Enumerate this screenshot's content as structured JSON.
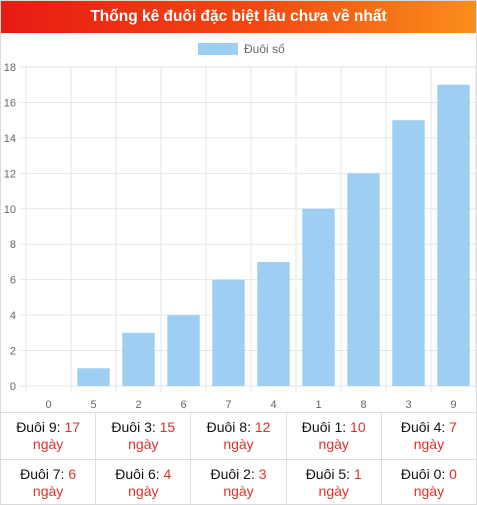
{
  "title": "Thống kê đuôi đặc biệt lâu chưa về nhất",
  "colors": {
    "bar": "#9ecff3",
    "grid": "#e6e6e6",
    "axis_text": "#666666",
    "accent": "#e0302a"
  },
  "chart_data": {
    "type": "bar",
    "categories": [
      "0",
      "5",
      "2",
      "6",
      "7",
      "4",
      "1",
      "8",
      "3",
      "9"
    ],
    "series": [
      {
        "name": "Đuôi số",
        "values": [
          0,
          1,
          3,
          4,
          6,
          7,
          10,
          12,
          15,
          17
        ]
      }
    ],
    "ylim": [
      0,
      18
    ],
    "yticks": [
      0,
      2,
      4,
      6,
      8,
      10,
      12,
      14,
      16,
      18
    ],
    "legend": "top-center",
    "grid": true
  },
  "stats": [
    [
      {
        "label": "Đuôi 9:",
        "value": "17",
        "unit": "ngày"
      },
      {
        "label": "Đuôi 3:",
        "value": "15",
        "unit": "ngày"
      },
      {
        "label": "Đuôi 8:",
        "value": "12",
        "unit": "ngày"
      },
      {
        "label": "Đuôi 1:",
        "value": "10",
        "unit": "ngày"
      },
      {
        "label": "Đuôi 4:",
        "value": "7",
        "unit": "ngày"
      }
    ],
    [
      {
        "label": "Đuôi 7:",
        "value": "6",
        "unit": "ngày"
      },
      {
        "label": "Đuôi 6:",
        "value": "4",
        "unit": "ngày"
      },
      {
        "label": "Đuôi 2:",
        "value": "3",
        "unit": "ngày"
      },
      {
        "label": "Đuôi 5:",
        "value": "1",
        "unit": "ngày"
      },
      {
        "label": "Đuôi 0:",
        "value": "0",
        "unit": "ngày"
      }
    ]
  ]
}
